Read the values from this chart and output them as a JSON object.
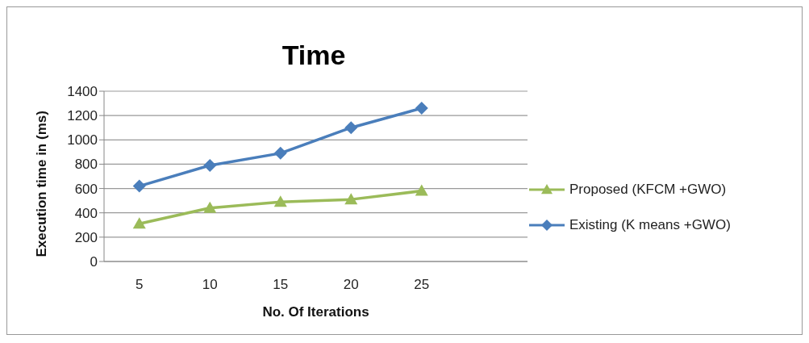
{
  "chart_data": {
    "type": "line",
    "title": "Time",
    "xlabel": "No. Of Iterations",
    "ylabel": "Execution time in (ms)",
    "categories": [
      "5",
      "10",
      "15",
      "20",
      "25",
      null
    ],
    "series": [
      {
        "name": "Proposed (KFCM +GWO)",
        "color": "#9bbb59",
        "marker": "triangle",
        "values": [
          310,
          440,
          490,
          510,
          580,
          null
        ]
      },
      {
        "name": "Existing (K means +GWO)",
        "color": "#4a7ebb",
        "marker": "diamond",
        "values": [
          620,
          790,
          890,
          1100,
          1260,
          null
        ]
      }
    ],
    "ylim": [
      0,
      1400
    ],
    "yticks": [
      0,
      200,
      400,
      600,
      800,
      1000,
      1200,
      1400
    ],
    "grid": "y",
    "legend": "right",
    "line_style": "solid"
  }
}
